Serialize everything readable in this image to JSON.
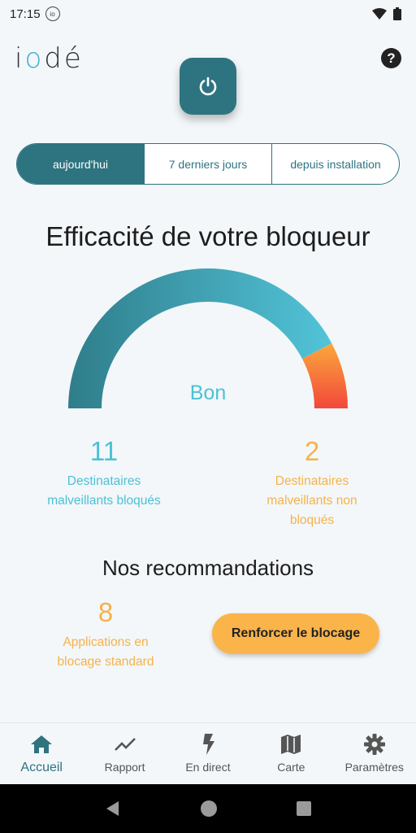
{
  "status_bar": {
    "time": "17:15",
    "badge": "io"
  },
  "app": {
    "logo_prefix": "i",
    "logo_o": "o",
    "logo_suffix": "dé"
  },
  "period_tabs": [
    "aujourd'hui",
    "7 derniers jours",
    "depuis installation"
  ],
  "gauge": {
    "title": "Efficacité de votre bloqueur",
    "rating": "Bon",
    "blocked_fraction": 0.846
  },
  "stats": {
    "blocked": {
      "value": "11",
      "label_line1": "Destinataires",
      "label_line2": "malveillants bloqués"
    },
    "not_blocked": {
      "value": "2",
      "label_line1": "Destinataires",
      "label_line2": "malveillants non",
      "label_line3": "bloqués"
    }
  },
  "recommendations": {
    "title": "Nos recommandations",
    "apps_count": "8",
    "apps_line1": "Applications en",
    "apps_line2": "blocage standard",
    "button_label": "Renforcer le blocage"
  },
  "nav": [
    {
      "label": "Accueil",
      "icon": "home-icon"
    },
    {
      "label": "Rapport",
      "icon": "trend-icon"
    },
    {
      "label": "En direct",
      "icon": "lightning-icon"
    },
    {
      "label": "Carte",
      "icon": "map-icon"
    },
    {
      "label": "Paramètres",
      "icon": "gear-icon"
    }
  ],
  "colors": {
    "primary": "#2e7480",
    "accent_blue": "#4cc0d6",
    "accent_orange": "#fbb44a",
    "danger": "#f2483b"
  }
}
